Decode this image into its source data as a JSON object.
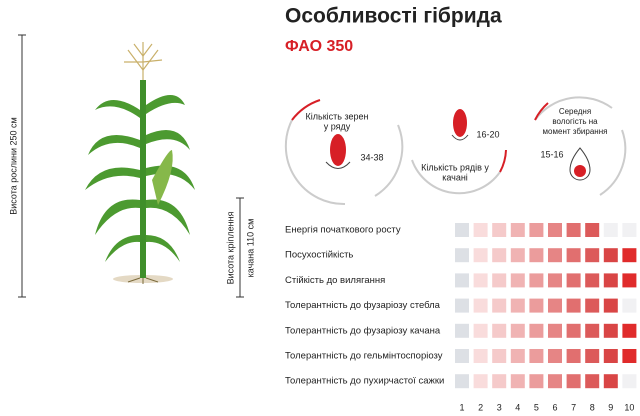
{
  "header": {
    "title": "Особливості гібрида",
    "subtitle": "ФАО 350"
  },
  "plant": {
    "height_label": "Висота рослини 250 см",
    "ear_height_label": [
      "Висота кріплення",
      "качана 110 см"
    ]
  },
  "stats": [
    {
      "label": [
        "Кількість зерен",
        "у ряду"
      ],
      "value": "34-38"
    },
    {
      "label": [
        "Кількість рядів у",
        "качані"
      ],
      "value": "16-20"
    },
    {
      "label": [
        "Середня",
        "вологість на",
        "момент збирання"
      ],
      "value": "15-16"
    }
  ],
  "traits": {
    "rows": [
      {
        "name": "Енергія початкового росту",
        "rating": 8
      },
      {
        "name": "Посухостійкість",
        "rating": 10
      },
      {
        "name": "Стійкість до вилягання",
        "rating": 10
      },
      {
        "name": "Толерантність до фузаріозу стебла",
        "rating": 9
      },
      {
        "name": "Толерантність до фузаріозу качана",
        "rating": 10
      },
      {
        "name": "Толерантність до гельмінтоспоріозу",
        "rating": 10
      },
      {
        "name": "Толерантність до пухирчастої сажки",
        "rating": 9
      }
    ],
    "scale": [
      1,
      2,
      3,
      4,
      5,
      6,
      7,
      8,
      9,
      10
    ]
  }
}
